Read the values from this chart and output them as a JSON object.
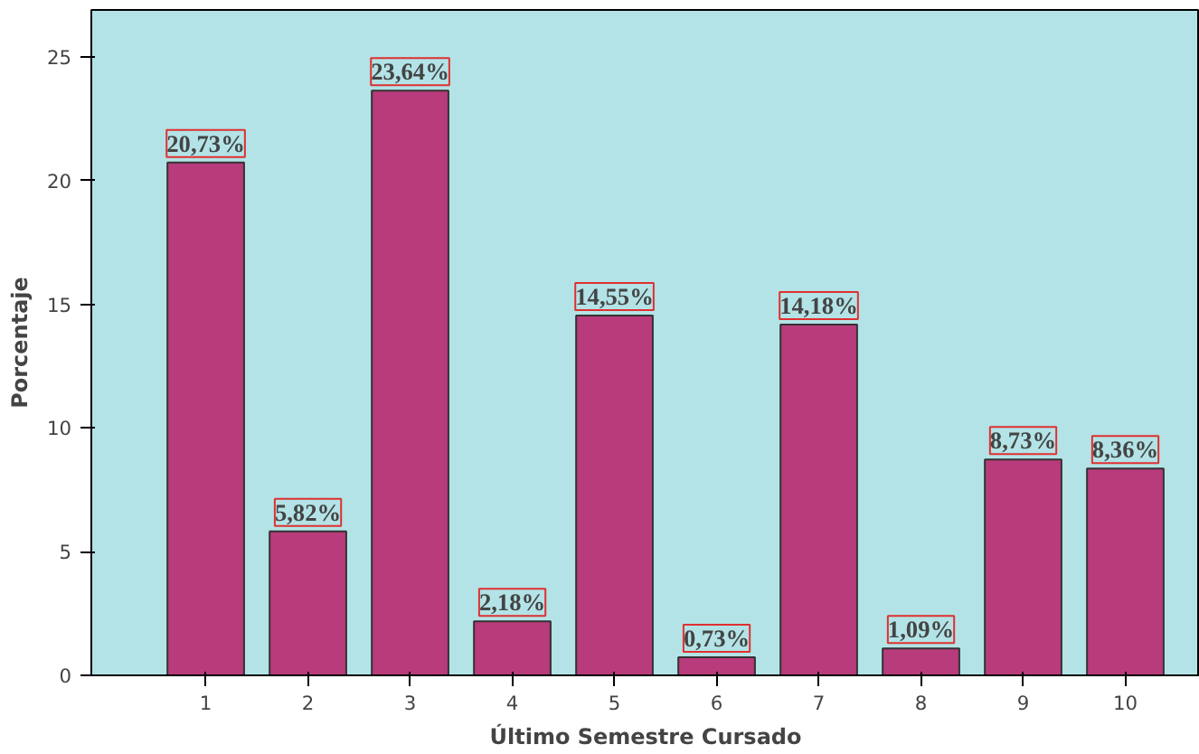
{
  "chart_data": {
    "type": "bar",
    "xlabel": "Último Semestre Cursado",
    "ylabel": "Porcentaje",
    "categories": [
      "1",
      "2",
      "3",
      "4",
      "5",
      "6",
      "7",
      "8",
      "9",
      "10"
    ],
    "values": [
      20.73,
      5.82,
      23.64,
      2.18,
      14.55,
      0.73,
      14.18,
      1.09,
      8.73,
      8.36
    ],
    "value_labels": [
      "20,73%",
      "5,82%",
      "23,64%",
      "2,18%",
      "14,55%",
      "0,73%",
      "14,18%",
      "1,09%",
      "8,73%",
      "8,36%"
    ],
    "color": "#b83b7b",
    "ylim": [
      0,
      26.9
    ],
    "yticks": [
      0,
      5,
      10,
      15,
      20,
      25
    ],
    "grid": false
  }
}
